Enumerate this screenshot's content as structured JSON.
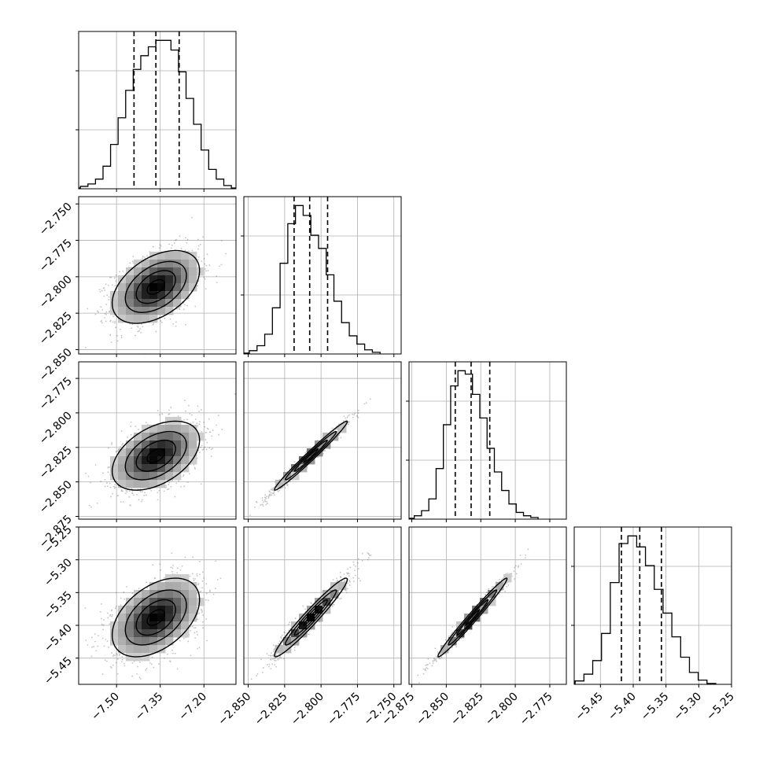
{
  "chart_data": {
    "type": "corner",
    "parameters": [
      {
        "range": [
          -7.63,
          -7.09
        ],
        "ticks": [
          "-7.50",
          "-7.35",
          "-7.20"
        ],
        "tick_values": [
          -7.5,
          -7.35,
          -7.2
        ],
        "quantiles": [
          -7.44,
          -7.365,
          -7.285
        ],
        "mean": -7.365,
        "sd": 0.075
      },
      {
        "range": [
          -2.853,
          -2.745
        ],
        "ticks": [
          "-2.850",
          "-2.825",
          "-2.800",
          "-2.775",
          "-2.750"
        ],
        "tick_values": [
          -2.85,
          -2.825,
          -2.8,
          -2.775,
          -2.75
        ],
        "quantiles": [
          -2.8185,
          -2.8078,
          -2.7955
        ],
        "mean": -2.807,
        "sd": 0.0125
      },
      {
        "range": [
          -2.877,
          -2.763
        ],
        "ticks": [
          "-2.875",
          "-2.850",
          "-2.825",
          "-2.800",
          "-2.775"
        ],
        "tick_values": [
          -2.875,
          -2.85,
          -2.825,
          -2.8,
          -2.775
        ],
        "quantiles": [
          -2.8435,
          -2.832,
          -2.8185
        ],
        "mean": -2.831,
        "sd": 0.0125
      },
      {
        "range": [
          -5.49,
          -5.25
        ],
        "ticks": [
          "-5.45",
          "-5.40",
          "-5.35",
          "-5.30",
          "-5.25"
        ],
        "tick_values": [
          -5.45,
          -5.4,
          -5.35,
          -5.3,
          -5.25
        ],
        "quantiles": [
          -5.418,
          -5.39,
          -5.357
        ],
        "mean": -5.388,
        "sd": 0.03
      }
    ],
    "hist_counts": [
      [
        1,
        3,
        6,
        12,
        28,
        55,
        88,
        122,
        148,
        165,
        176,
        184,
        184,
        172,
        145,
        112,
        80,
        48,
        24,
        12,
        4,
        1
      ],
      [
        1,
        4,
        10,
        24,
        56,
        110,
        158,
        180,
        168,
        144,
        128,
        96,
        64,
        38,
        22,
        12,
        5,
        2
      ],
      [
        1,
        4,
        10,
        24,
        60,
        112,
        158,
        176,
        172,
        148,
        120,
        84,
        56,
        34,
        18,
        8,
        4,
        2
      ],
      [
        1,
        4,
        12,
        28,
        60,
        120,
        166,
        175,
        162,
        140,
        112,
        84,
        56,
        32,
        14,
        5,
        1
      ]
    ],
    "correlations": {
      "1-0": 0.45,
      "2-0": 0.45,
      "2-1": 0.985,
      "3-0": 0.45,
      "3-1": 0.965,
      "3-2": 0.985
    },
    "grid": true,
    "quantile_lines": "dashed"
  }
}
